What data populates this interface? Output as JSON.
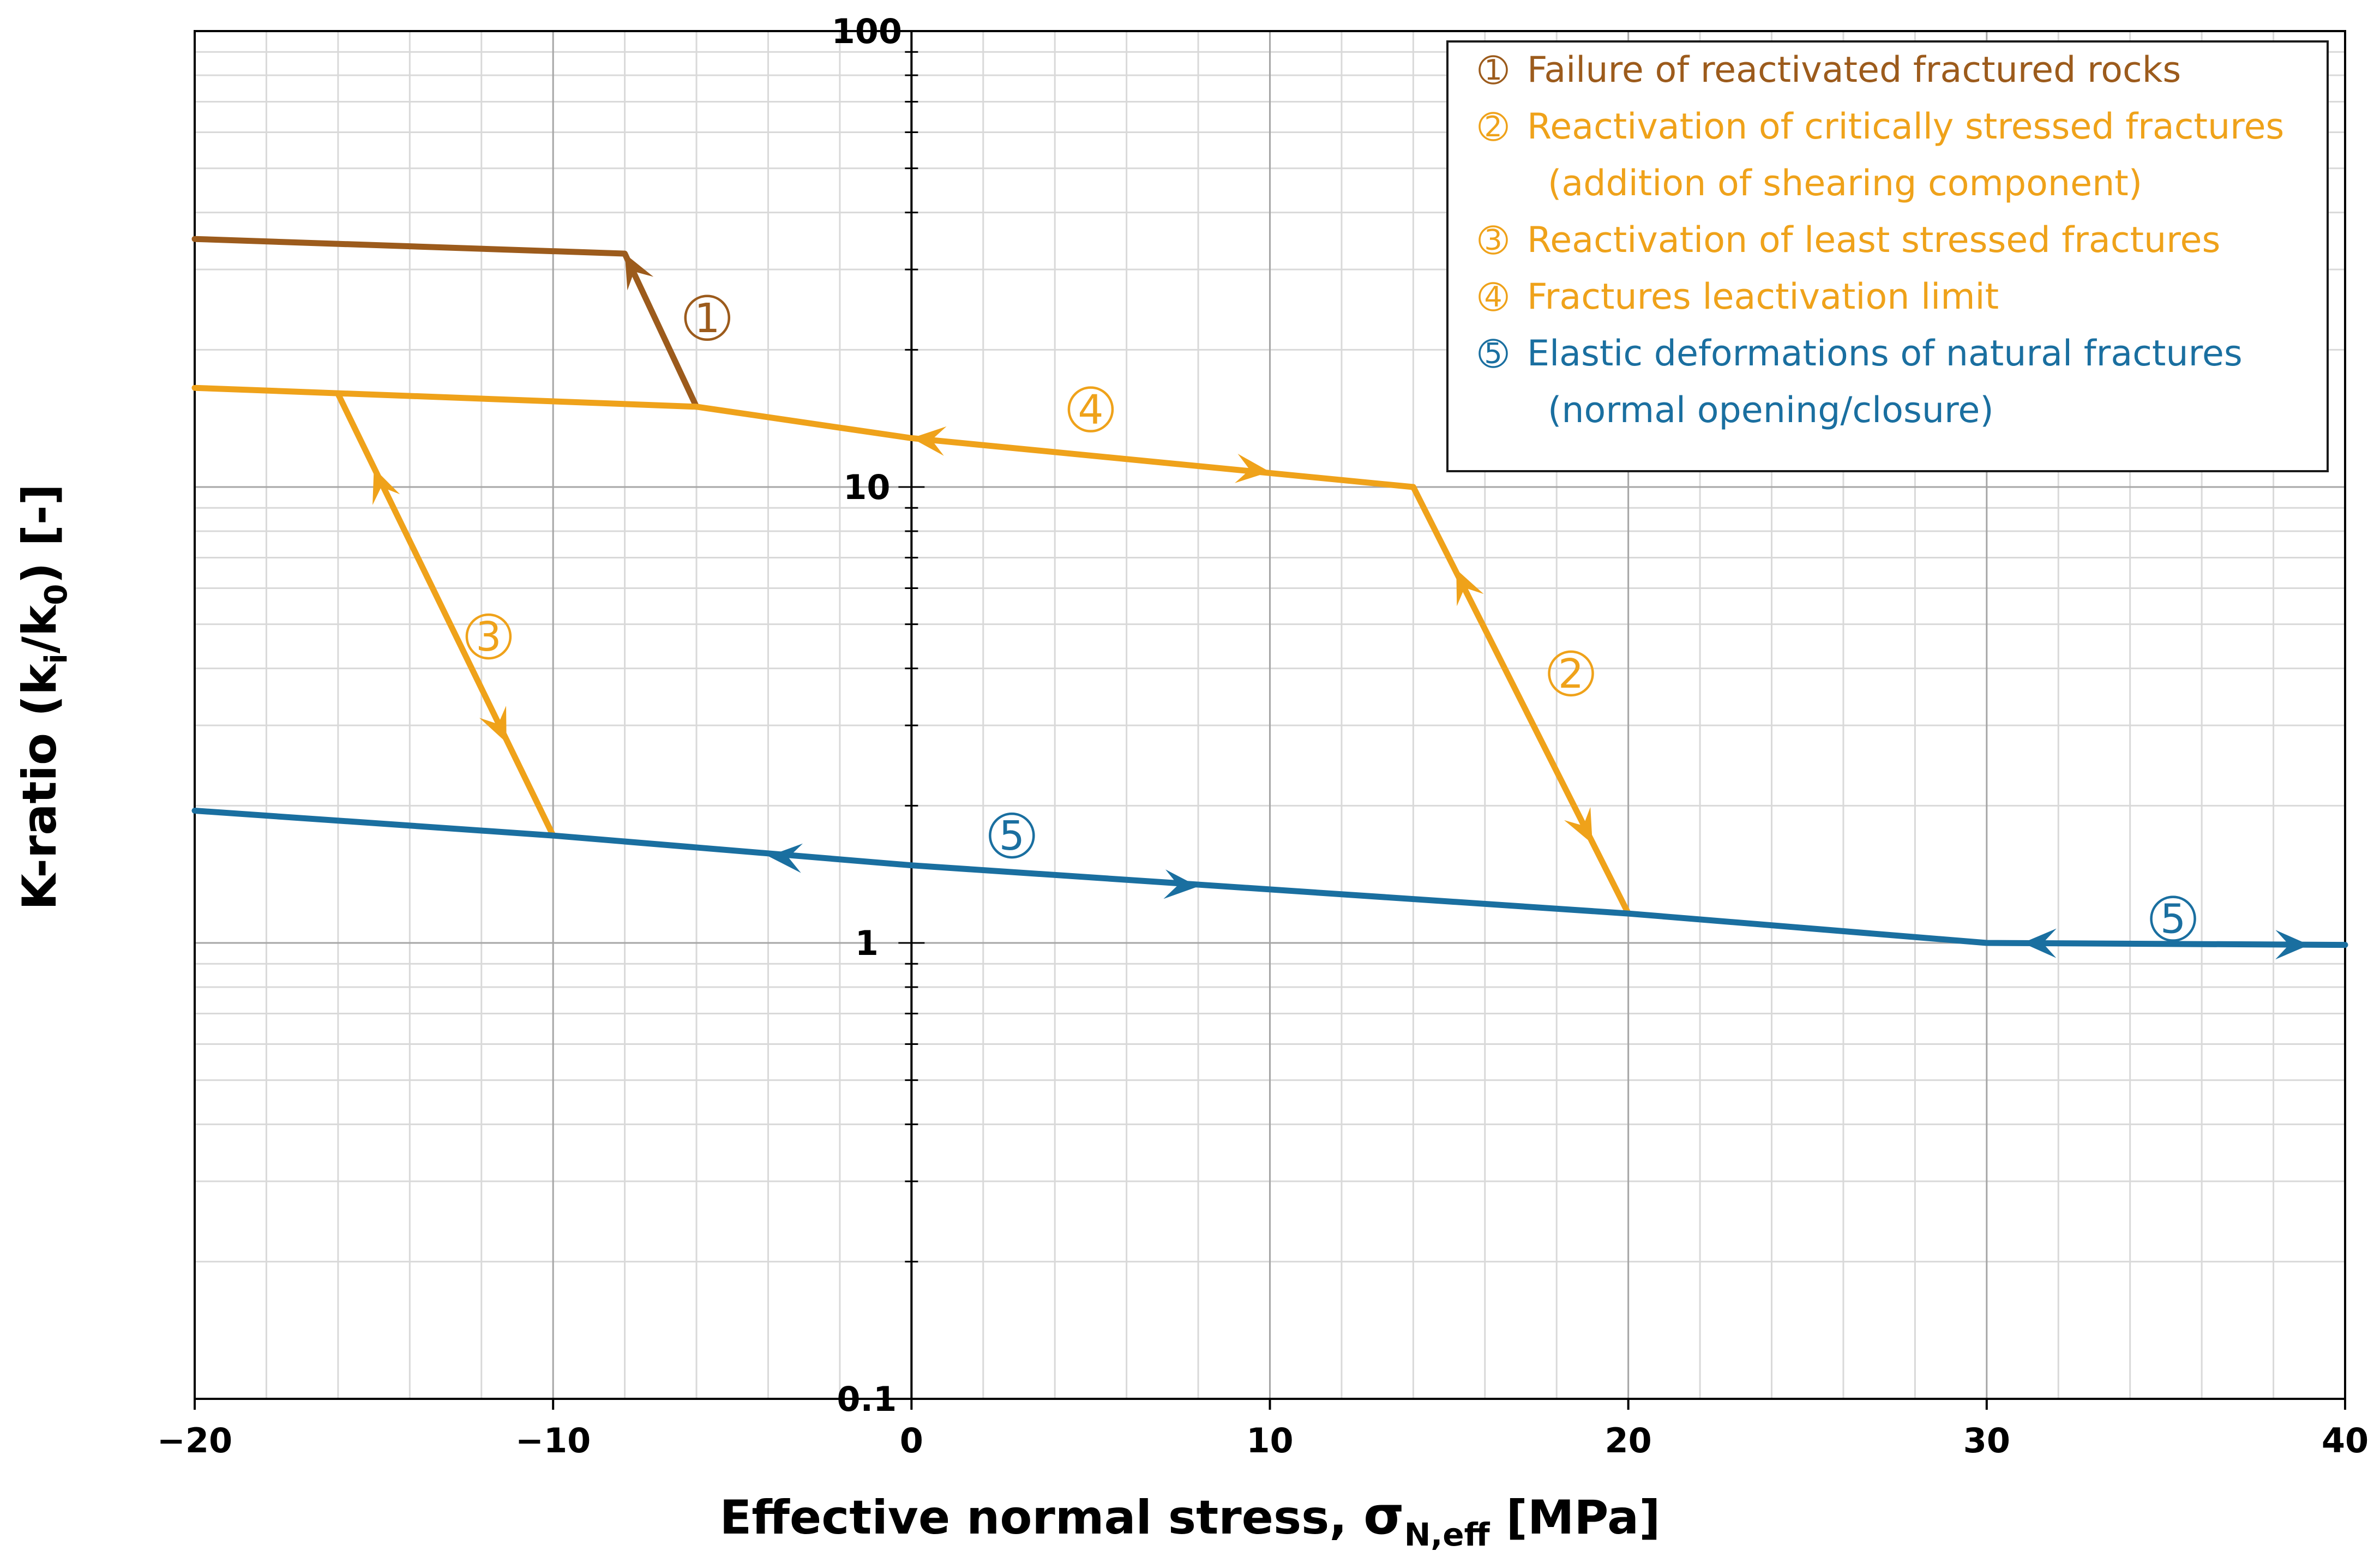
{
  "chart_data": {
    "type": "line",
    "x_scale": "linear",
    "y_scale": "log",
    "xlim": [
      -20,
      40
    ],
    "ylim": [
      0.1,
      100
    ],
    "x_ticks": [
      -20,
      -10,
      0,
      10,
      20,
      30,
      40
    ],
    "x_tick_labels": [
      "−20",
      "−10",
      "0",
      "10",
      "20",
      "30",
      "40"
    ],
    "y_ticks": [
      0.1,
      1,
      10,
      100
    ],
    "y_tick_labels": [
      "0.1",
      "1",
      "10",
      "100"
    ],
    "grid": true,
    "xlabel": {
      "main": "Effective normal stress, ",
      "sigma": "σ",
      "subscript": "N,eff",
      "unit": " [MPa]"
    },
    "ylabel": {
      "pre": "K-ratio (k",
      "sub1": "i",
      "mid": "/k",
      "sub2": "0",
      "post": ") [-]"
    },
    "colors": {
      "failure": "#9C5B1C",
      "reactivation": "#EFA21A",
      "elastic": "#1A6FA0",
      "grid_major": "#a6a6a6",
      "grid_minor": "#d9d9d9",
      "axis": "#000000"
    },
    "legend": {
      "position": "top-right",
      "entries": [
        {
          "marker": "1",
          "text": "Failure of reactivated fractured rocks",
          "color_key": "failure"
        },
        {
          "marker": "2",
          "text": "Reactivation of critically stressed fractures",
          "color_key": "reactivation"
        },
        {
          "marker": "",
          "text": "(addition of shearing component)",
          "color_key": "reactivation"
        },
        {
          "marker": "3",
          "text": "Reactivation of least stressed fractures",
          "color_key": "reactivation"
        },
        {
          "marker": "4",
          "text": "Fractures leactivation limit",
          "color_key": "reactivation"
        },
        {
          "marker": "5",
          "text": "Elastic deformations of natural fractures",
          "color_key": "elastic"
        },
        {
          "marker": "",
          "text": "(normal opening/closure)",
          "color_key": "elastic"
        }
      ]
    },
    "series": [
      {
        "name": "Failure of reactivated fractured rocks",
        "label": "1",
        "color_key": "failure",
        "points": [
          [
            -20,
            35
          ],
          [
            -8,
            32.5
          ],
          [
            -6,
            15
          ]
        ]
      },
      {
        "name": "Fractures leactivation limit",
        "label": "4",
        "color_key": "reactivation",
        "points": [
          [
            -20,
            16.5
          ],
          [
            -6,
            15
          ],
          [
            0,
            12.8
          ],
          [
            14,
            10
          ]
        ]
      },
      {
        "name": "Reactivation of critically stressed fractures",
        "label": "2",
        "color_key": "reactivation",
        "points": [
          [
            14,
            10
          ],
          [
            20,
            1.16
          ]
        ]
      },
      {
        "name": "Reactivation of least stressed fractures",
        "label": "3",
        "color_key": "reactivation",
        "points": [
          [
            -16,
            16
          ],
          [
            -10,
            1.72
          ]
        ]
      },
      {
        "name": "Elastic deformations of natural fractures",
        "label": "5",
        "color_key": "elastic",
        "points": [
          [
            -20,
            1.95
          ],
          [
            -10,
            1.72
          ],
          [
            0,
            1.48
          ],
          [
            20,
            1.16
          ],
          [
            30,
            1.0
          ],
          [
            40,
            0.99
          ]
        ]
      }
    ],
    "arrows": [
      {
        "x": -8,
        "y": 32.5,
        "from": [
          -6.6,
          20
        ],
        "color_key": "failure"
      },
      {
        "x": 0,
        "y": 12.8,
        "from": [
          2,
          12.4
        ],
        "color_key": "reactivation"
      },
      {
        "x": 10,
        "y": 10.8,
        "from": [
          8,
          11.2
        ],
        "color_key": "reactivation"
      },
      {
        "x": 15.2,
        "y": 6.6,
        "from": [
          16,
          4.8
        ],
        "color_key": "reactivation"
      },
      {
        "x": 19,
        "y": 1.65,
        "from": [
          18.2,
          2.2
        ],
        "color_key": "reactivation"
      },
      {
        "x": -15,
        "y": 11,
        "from": [
          -14.2,
          7.6
        ],
        "color_key": "reactivation"
      },
      {
        "x": -11.3,
        "y": 2.75,
        "from": [
          -12.1,
          3.8
        ],
        "color_key": "reactivation"
      },
      {
        "x": -4,
        "y": 1.55,
        "from": [
          -1,
          1.5
        ],
        "color_key": "elastic"
      },
      {
        "x": 8,
        "y": 1.33,
        "from": [
          5,
          1.38
        ],
        "color_key": "elastic"
      },
      {
        "x": 31,
        "y": 1.0,
        "from": [
          34,
          0.995
        ],
        "color_key": "elastic"
      },
      {
        "x": 39,
        "y": 0.99,
        "from": [
          36,
          0.993
        ],
        "color_key": "elastic"
      }
    ],
    "annotations": [
      {
        "marker": "1",
        "x": -5.7,
        "y": 23.5,
        "color_key": "failure"
      },
      {
        "marker": "4",
        "x": 5,
        "y": 14.8,
        "color_key": "reactivation"
      },
      {
        "marker": "3",
        "x": -11.8,
        "y": 4.7,
        "color_key": "reactivation"
      },
      {
        "marker": "2",
        "x": 18.4,
        "y": 3.9,
        "color_key": "reactivation"
      },
      {
        "marker": "5",
        "x": 2.8,
        "y": 1.72,
        "color_key": "elastic"
      },
      {
        "marker": "5",
        "x": 35.2,
        "y": 1.13,
        "color_key": "elastic"
      }
    ]
  }
}
